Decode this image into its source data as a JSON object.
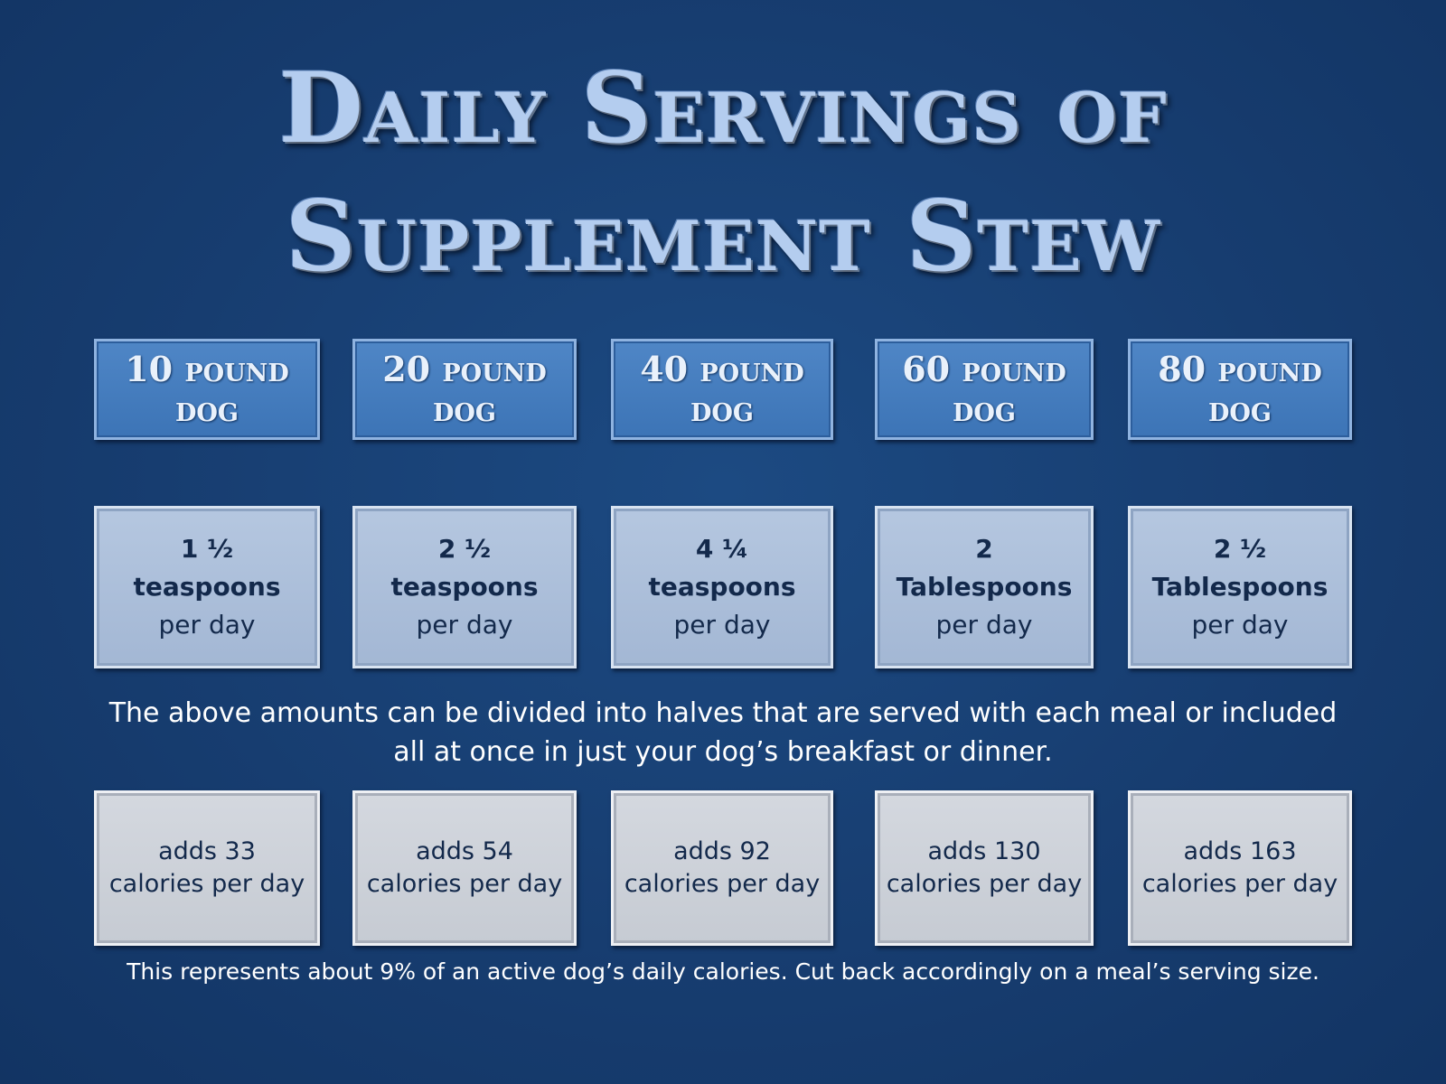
{
  "title": {
    "line1": "Daily Servings of",
    "line2": "Supplement Stew"
  },
  "dogs": [
    {
      "label_top": "10 pound",
      "label_bottom": "dog",
      "amount": "1 ½",
      "unit": "teaspoons",
      "per": "per day",
      "cal_line1": "adds 33",
      "cal_line2": "calories per day"
    },
    {
      "label_top": "20 pound",
      "label_bottom": "dog",
      "amount": "2 ½",
      "unit": "teaspoons",
      "per": "per day",
      "cal_line1": "adds 54",
      "cal_line2": "calories per day"
    },
    {
      "label_top": "40 pound",
      "label_bottom": "dog",
      "amount": "4 ¼",
      "unit": "teaspoons",
      "per": "per day",
      "cal_line1": "adds 92",
      "cal_line2": "calories per day"
    },
    {
      "label_top": "60 pound",
      "label_bottom": "dog",
      "amount": "2",
      "unit": "Tablespoons",
      "per": "per day",
      "cal_line1": "adds 130",
      "cal_line2": "calories per day"
    },
    {
      "label_top": "80 pound",
      "label_bottom": "dog",
      "amount": "2 ½",
      "unit": "Tablespoons",
      "per": "per day",
      "cal_line1": "adds 163",
      "cal_line2": "calories per day"
    }
  ],
  "note_divide": "The above amounts can be divided into halves that are served with each meal or included all at once in just your dog’s breakfast or dinner.",
  "note_calories": "This represents about 9% of an active dog’s daily calories. Cut back accordingly on a meal’s serving size.",
  "colors": {
    "background": "#173d70",
    "title": "#b4cdef",
    "header_box": "#4680c2",
    "serving_box": "#adc0db",
    "calorie_box": "#ced2d9"
  }
}
